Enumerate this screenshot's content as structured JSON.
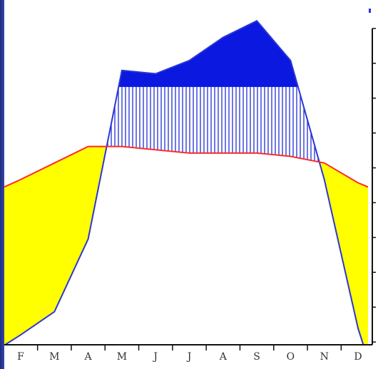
{
  "chart_data": {
    "type": "area",
    "title": "",
    "xlabel": "",
    "ylabel": "",
    "categories": [
      "F",
      "M",
      "A",
      "M",
      "J",
      "J",
      "A",
      "S",
      "O",
      "N",
      "D"
    ],
    "series": [
      {
        "values": [
          50,
          55,
          60,
          60,
          59,
          58,
          58,
          58,
          57,
          55,
          49
        ]
      },
      {
        "values": [
          3,
          10,
          32,
          83,
          82,
          86,
          93,
          98,
          86,
          50,
          5
        ]
      }
    ],
    "cap_value": 78,
    "ylim": [
      0,
      100
    ],
    "grid": false,
    "legend": "none",
    "colors": {
      "temperature_line": "#ff2a2a",
      "precipitation_line": "#2a36d6",
      "dry_fill": "#ffff00",
      "wet_hatch": "#1f2fd6",
      "excess_fill": "#0a18e0",
      "axis": "#111111",
      "frame_bg": "#2b3b8f",
      "corner_mark": "#2a36d6"
    }
  }
}
